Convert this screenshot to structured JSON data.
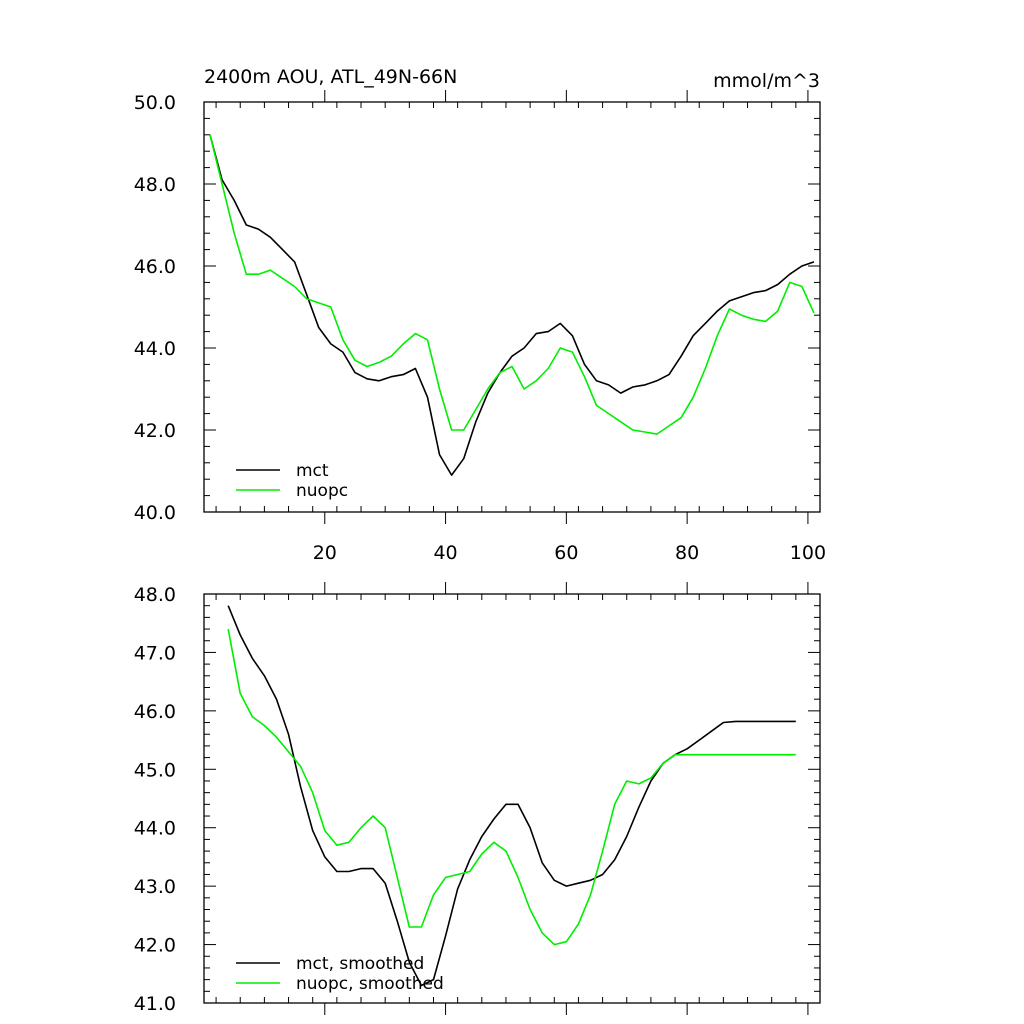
{
  "colors": {
    "mct": "#000000",
    "nuopc": "#00ee00",
    "axis": "#000000",
    "background": "#ffffff"
  },
  "chart_data": [
    {
      "type": "line",
      "title": "2400m AOU, ATL_49N-66N",
      "units": "mmol/m^3",
      "xlim": [
        0,
        102
      ],
      "ylim": [
        40.0,
        50.0
      ],
      "xticks": [
        20,
        40,
        60,
        80,
        100
      ],
      "xtick_labels": [
        "20",
        "40",
        "60",
        "80",
        "100"
      ],
      "yticks": [
        40,
        42,
        44,
        46,
        48,
        50
      ],
      "ytick_labels": [
        "40.0",
        "42.0",
        "44.0",
        "46.0",
        "48.0",
        "50.0"
      ],
      "legend_position": "bottom-left",
      "series": [
        {
          "name": "mct",
          "color": "#000000",
          "x": [
            1,
            3,
            5,
            7,
            9,
            11,
            13,
            15,
            17,
            19,
            21,
            23,
            25,
            27,
            29,
            31,
            33,
            35,
            37,
            39,
            41,
            43,
            45,
            47,
            49,
            51,
            53,
            55,
            57,
            59,
            61,
            63,
            65,
            67,
            69,
            71,
            73,
            75,
            77,
            79,
            81,
            83,
            85,
            87,
            89,
            91,
            93,
            95,
            97,
            99,
            101
          ],
          "values": [
            49.2,
            48.1,
            47.6,
            47.0,
            46.9,
            46.7,
            46.4,
            46.1,
            45.3,
            44.5,
            44.1,
            43.9,
            43.4,
            43.25,
            43.2,
            43.3,
            43.35,
            43.5,
            42.8,
            41.4,
            40.9,
            41.3,
            42.2,
            42.9,
            43.4,
            43.8,
            44.0,
            44.35,
            44.4,
            44.6,
            44.3,
            43.6,
            43.2,
            43.1,
            42.9,
            43.05,
            43.1,
            43.2,
            43.35,
            43.8,
            44.3,
            44.6,
            44.9,
            45.15,
            45.25,
            45.35,
            45.4,
            45.55,
            45.8,
            46.0,
            46.1
          ]
        },
        {
          "name": "nuopc",
          "color": "#00ee00",
          "x": [
            1,
            3,
            5,
            7,
            9,
            11,
            13,
            15,
            17,
            19,
            21,
            23,
            25,
            27,
            29,
            31,
            33,
            35,
            37,
            39,
            41,
            43,
            45,
            47,
            49,
            51,
            53,
            55,
            57,
            59,
            61,
            63,
            65,
            67,
            69,
            71,
            73,
            75,
            77,
            79,
            81,
            83,
            85,
            87,
            89,
            91,
            93,
            95,
            97,
            99,
            101
          ],
          "values": [
            49.2,
            48.0,
            46.8,
            45.8,
            45.8,
            45.9,
            45.7,
            45.5,
            45.2,
            45.1,
            45.0,
            44.2,
            43.7,
            43.55,
            43.65,
            43.8,
            44.1,
            44.35,
            44.2,
            43.0,
            42.0,
            42.0,
            42.5,
            43.0,
            43.4,
            43.55,
            43.0,
            43.2,
            43.5,
            44.0,
            43.9,
            43.3,
            42.6,
            42.4,
            42.2,
            42.0,
            41.95,
            41.9,
            42.1,
            42.3,
            42.8,
            43.5,
            44.3,
            44.95,
            44.8,
            44.7,
            44.65,
            44.9,
            45.6,
            45.5,
            44.85
          ]
        }
      ]
    },
    {
      "type": "line",
      "title": "",
      "units": "",
      "xlim": [
        0,
        102
      ],
      "ylim": [
        41.0,
        48.0
      ],
      "xticks": [
        20,
        40,
        60,
        80,
        100
      ],
      "xtick_labels": [],
      "yticks": [
        41,
        42,
        43,
        44,
        45,
        46,
        47,
        48
      ],
      "ytick_labels": [
        "41.0",
        "42.0",
        "43.0",
        "44.0",
        "45.0",
        "46.0",
        "47.0",
        "48.0"
      ],
      "legend_position": "bottom-left",
      "series": [
        {
          "name": "mct, smoothed",
          "color": "#000000",
          "x": [
            4,
            6,
            8,
            10,
            12,
            14,
            16,
            18,
            20,
            22,
            24,
            26,
            28,
            30,
            32,
            34,
            36,
            38,
            40,
            42,
            44,
            46,
            48,
            50,
            52,
            54,
            56,
            58,
            60,
            62,
            64,
            66,
            68,
            70,
            72,
            74,
            76,
            78,
            80,
            82,
            84,
            86,
            88,
            90,
            92,
            94,
            96,
            98
          ],
          "values": [
            47.8,
            47.3,
            46.9,
            46.6,
            46.2,
            45.6,
            44.7,
            43.95,
            43.5,
            43.25,
            43.25,
            43.3,
            43.3,
            43.05,
            42.4,
            41.7,
            41.3,
            41.4,
            42.15,
            42.95,
            43.45,
            43.85,
            44.15,
            44.4,
            44.4,
            44.0,
            43.4,
            43.1,
            43.0,
            43.05,
            43.1,
            43.2,
            43.45,
            43.85,
            44.35,
            44.8,
            45.1,
            45.25,
            45.35,
            45.5,
            45.65,
            45.8,
            45.82,
            45.82,
            45.82,
            45.82,
            45.82,
            45.82
          ]
        },
        {
          "name": "nuopc, smoothed",
          "color": "#00ee00",
          "x": [
            4,
            6,
            8,
            10,
            12,
            14,
            16,
            18,
            20,
            22,
            24,
            26,
            28,
            30,
            32,
            34,
            36,
            38,
            40,
            42,
            44,
            46,
            48,
            50,
            52,
            54,
            56,
            58,
            60,
            62,
            64,
            66,
            68,
            70,
            72,
            74,
            76,
            78,
            80,
            82,
            84,
            86,
            88,
            90,
            92,
            94,
            96,
            98
          ],
          "values": [
            47.4,
            46.3,
            45.9,
            45.75,
            45.55,
            45.3,
            45.05,
            44.6,
            43.95,
            43.7,
            43.75,
            44.0,
            44.2,
            44.0,
            43.15,
            42.3,
            42.3,
            42.85,
            43.15,
            43.2,
            43.25,
            43.55,
            43.75,
            43.6,
            43.15,
            42.6,
            42.2,
            42.0,
            42.05,
            42.35,
            42.85,
            43.6,
            44.4,
            44.8,
            44.75,
            44.85,
            45.1,
            45.25,
            45.25,
            45.25,
            45.25,
            45.25,
            45.25,
            45.25,
            45.25,
            45.25,
            45.25,
            45.25
          ]
        }
      ]
    }
  ]
}
